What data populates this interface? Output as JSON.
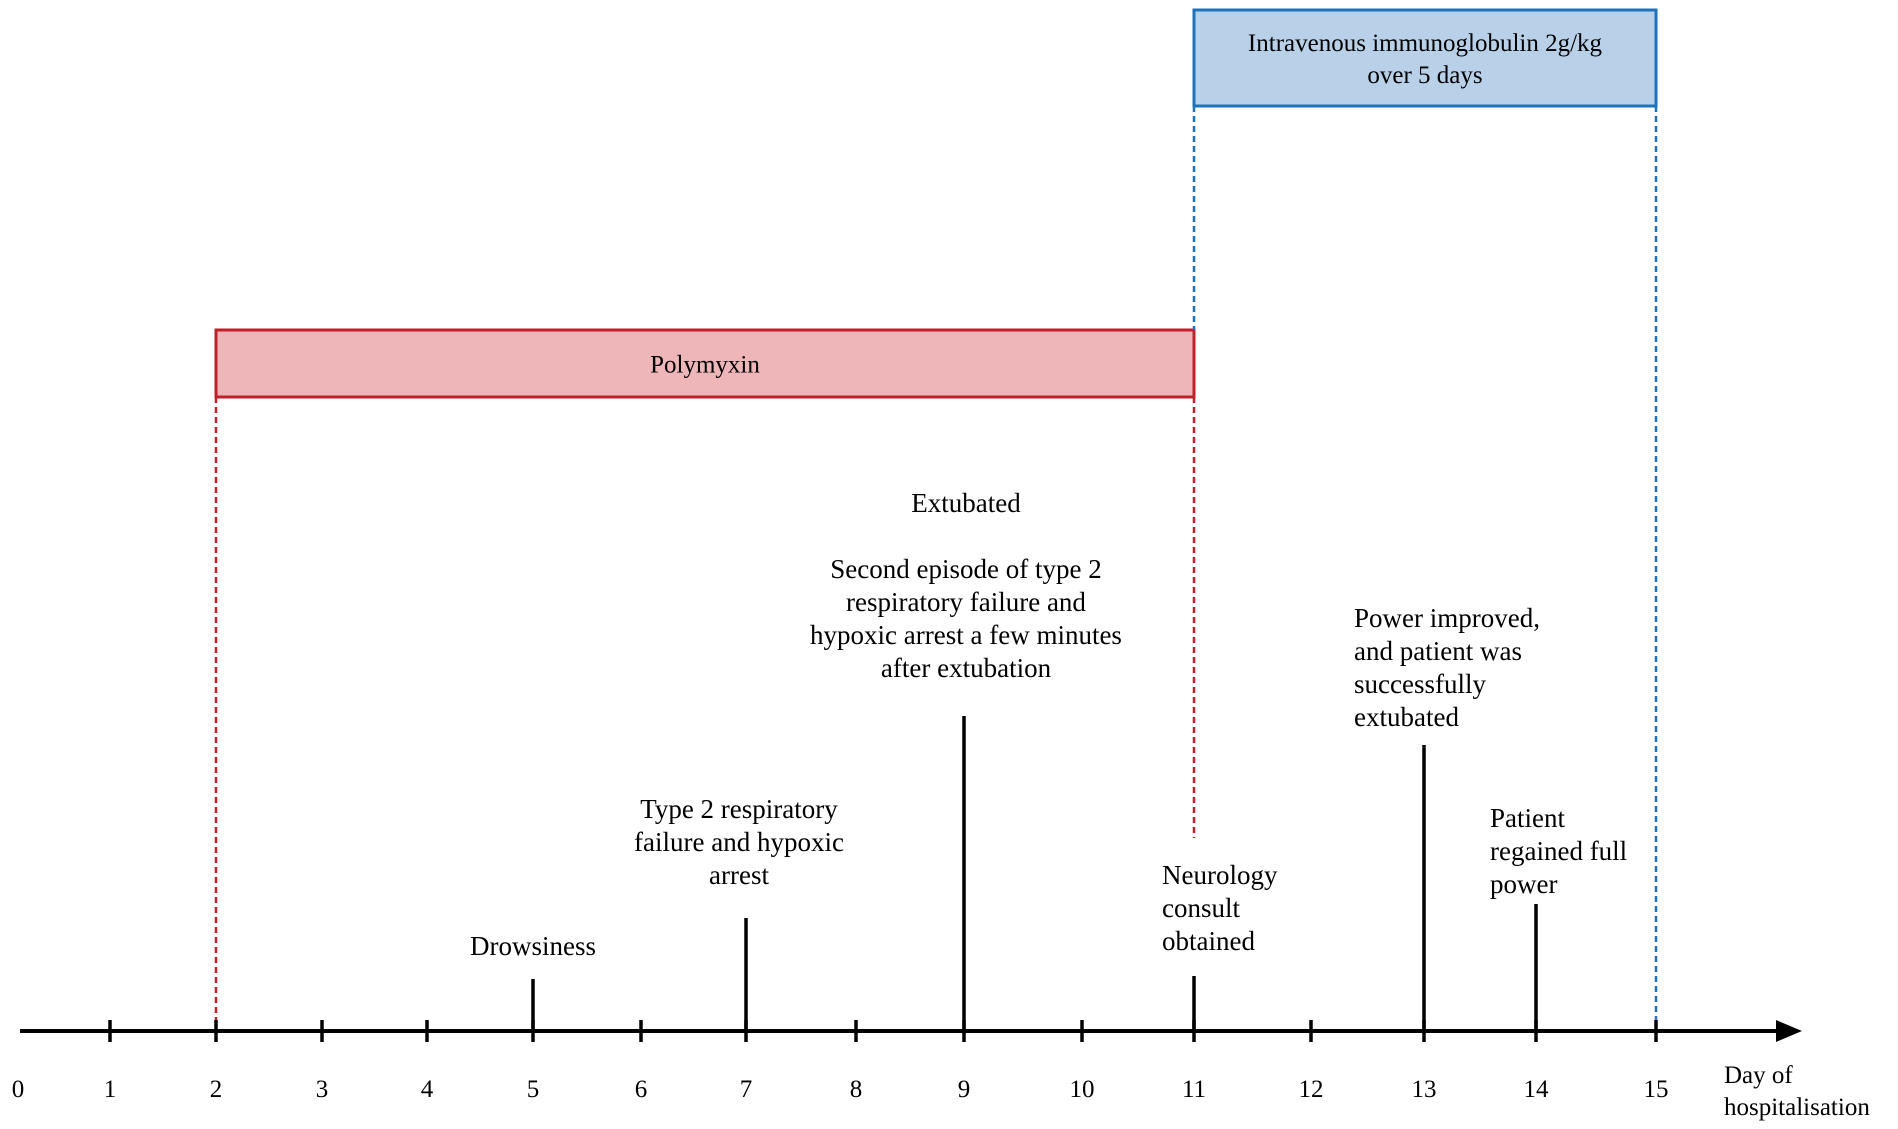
{
  "axis": {
    "min": 0,
    "max": 15,
    "ticks": [
      0,
      1,
      2,
      3,
      4,
      5,
      6,
      7,
      8,
      9,
      10,
      11,
      12,
      13,
      14,
      15
    ],
    "label_lines": [
      "Day of",
      "hospitalisation"
    ]
  },
  "treatments": {
    "polymyxin": {
      "label_lines": [
        "Polymyxin"
      ],
      "start_day": 2,
      "end_day": 11,
      "fill": "#eeb6b9",
      "stroke": "#c0202a"
    },
    "ivig": {
      "label_lines": [
        "Intravenous immunoglobulin 2g/kg",
        "over 5 days"
      ],
      "start_day": 11,
      "end_day": 15,
      "fill": "#b9d1e8",
      "stroke": "#1d72b9"
    }
  },
  "events": [
    {
      "day": 5,
      "lines": [
        "Drowsiness"
      ],
      "align": "center"
    },
    {
      "day": 7,
      "lines": [
        "Type 2 respiratory",
        "failure and hypoxic",
        "arrest"
      ],
      "align": "center"
    },
    {
      "day": 9,
      "lines": [
        "Extubated",
        "",
        "Second episode of type 2",
        "respiratory failure and",
        "hypoxic arrest a few minutes",
        "after extubation"
      ],
      "align": "center"
    },
    {
      "day": 11,
      "lines": [
        "Neurology",
        "consult",
        "obtained"
      ],
      "align": "start"
    },
    {
      "day": 13,
      "lines": [
        "Power improved,",
        "and patient was",
        "successfully",
        "extubated"
      ],
      "align": "start"
    },
    {
      "day": 14,
      "lines": [
        "Patient",
        "regained full",
        "power"
      ],
      "align": "start"
    }
  ]
}
